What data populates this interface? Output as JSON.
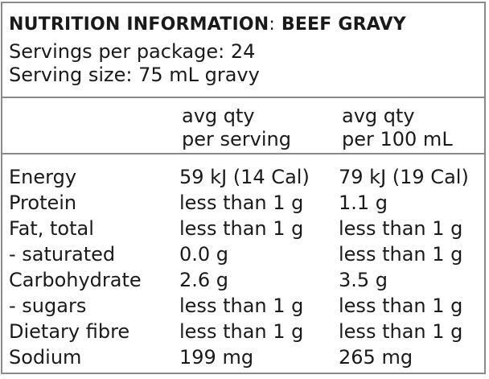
{
  "header": {
    "title_prefix": "NUTRITION INFORMATION",
    "title_separator": ":",
    "title_product": "BEEF GRAVY",
    "servings": "Servings per package: 24",
    "serving_size": "Serving size: 75 mL gravy"
  },
  "columns": {
    "per_serving_line1": "avg qty",
    "per_serving_line2": "per serving",
    "per_100_line1": "avg qty",
    "per_100_line2": "per 100 mL"
  },
  "rows": [
    {
      "name": "Energy",
      "per_serving": "59 kJ (14 Cal)",
      "per_100": "79 kJ (19 Cal)"
    },
    {
      "name": "Protein",
      "per_serving": "less than 1 g",
      "per_100": "1.1 g"
    },
    {
      "name": "Fat, total",
      "per_serving": "less than 1 g",
      "per_100": "less than 1 g"
    },
    {
      "name": "- saturated",
      "per_serving": "0.0 g",
      "per_100": "less than 1 g"
    },
    {
      "name": "Carbohydrate",
      "per_serving": "2.6 g",
      "per_100": "3.5 g"
    },
    {
      "name": "- sugars",
      "per_serving": "less than 1 g",
      "per_100": "less than 1 g"
    },
    {
      "name": "Dietary fibre",
      "per_serving": "less than 1 g",
      "per_100": "less than 1 g"
    },
    {
      "name": "Sodium",
      "per_serving": "199 mg",
      "per_100": "265 mg"
    }
  ]
}
